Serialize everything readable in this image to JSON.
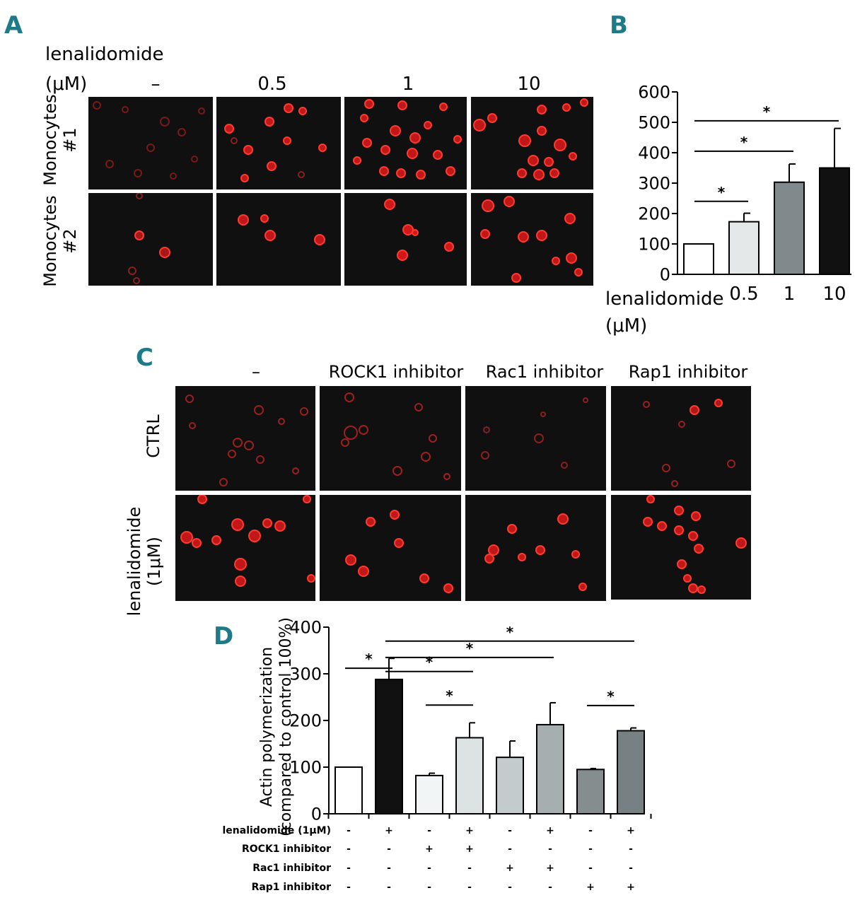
{
  "panelA": {
    "letter": "A",
    "drug_label": "lenalidomide",
    "unit_label": "(μM)",
    "columns": [
      "–",
      "0.5",
      "1",
      "10"
    ],
    "rows": [
      {
        "line1": "Monocytes",
        "line2": "#1"
      },
      {
        "line1": "Monocytes",
        "line2": "#2"
      }
    ]
  },
  "panelB": {
    "letter": "B",
    "x_label_line1": "lenalidomide",
    "x_label_line2": "(μM)",
    "significance_mark": "*"
  },
  "panelC": {
    "letter": "C",
    "columns": [
      "–",
      "ROCK1 inhibitor",
      "Rac1 inhibitor",
      "Rap1 inhibitor"
    ],
    "rows": [
      {
        "line1": "CTRL",
        "line2": ""
      },
      {
        "line1": "lenalidomide",
        "line2": "(1μM)"
      }
    ]
  },
  "panelD": {
    "letter": "D",
    "significance_mark": "*",
    "treatment_matrix": [
      {
        "label": "lenalidomide (1μM)",
        "marks": [
          "-",
          "+",
          "-",
          "+",
          "-",
          "+",
          "-",
          "+"
        ]
      },
      {
        "label": "ROCK1 inhibitor",
        "marks": [
          "-",
          "-",
          "+",
          "+",
          "-",
          "-",
          "-",
          "-"
        ]
      },
      {
        "label": "Rac1 inhibitor",
        "marks": [
          "-",
          "-",
          "-",
          "-",
          "+",
          "+",
          "-",
          "-"
        ]
      },
      {
        "label": "Rap1 inhibitor",
        "marks": [
          "-",
          "-",
          "-",
          "-",
          "-",
          "-",
          "+",
          "+"
        ]
      }
    ]
  },
  "chart_data": [
    {
      "id": "B",
      "type": "bar",
      "categories": [
        "",
        "0.5",
        "1",
        "10"
      ],
      "values": [
        100,
        173,
        303,
        350
      ],
      "errors": [
        0,
        28,
        60,
        130
      ],
      "colors": [
        "#ffffff",
        "#e4e8e8",
        "#808a8c",
        "#111111"
      ],
      "ylim": [
        0,
        600
      ],
      "yticks": [
        0,
        100,
        200,
        300,
        400,
        500,
        600
      ],
      "significance": [
        {
          "from": 0,
          "to": 1,
          "y": 240,
          "label": "*"
        },
        {
          "from": 0,
          "to": 2,
          "y": 405,
          "label": "*"
        },
        {
          "from": 0,
          "to": 3,
          "y": 505,
          "label": "*"
        }
      ]
    },
    {
      "id": "D",
      "type": "bar",
      "ylabel_line1": "Actin polymerization",
      "ylabel_line2": "(compared to control 100%)",
      "values": [
        100,
        288,
        82,
        163,
        121,
        191,
        95,
        178
      ],
      "errors": [
        0,
        45,
        5,
        32,
        35,
        47,
        2,
        6
      ],
      "colors": [
        "#ffffff",
        "#111111",
        "#f2f5f5",
        "#dde2e3",
        "#c4cbcc",
        "#a6aeaf",
        "#858d8f",
        "#778082"
      ],
      "ylim": [
        0,
        400
      ],
      "yticks": [
        0,
        100,
        200,
        300,
        400
      ],
      "significance": [
        {
          "from": 0,
          "to": 1,
          "y": 312,
          "label": "*"
        },
        {
          "from": 1,
          "to": 3,
          "y": 305,
          "label": "*"
        },
        {
          "from": 2,
          "to": 3,
          "y": 233,
          "label": "*"
        },
        {
          "from": 1,
          "to": 5,
          "y": 335,
          "label": "*"
        },
        {
          "from": 1,
          "to": 7,
          "y": 370,
          "label": "*"
        },
        {
          "from": 6,
          "to": 7,
          "y": 232,
          "label": "*"
        }
      ]
    }
  ]
}
